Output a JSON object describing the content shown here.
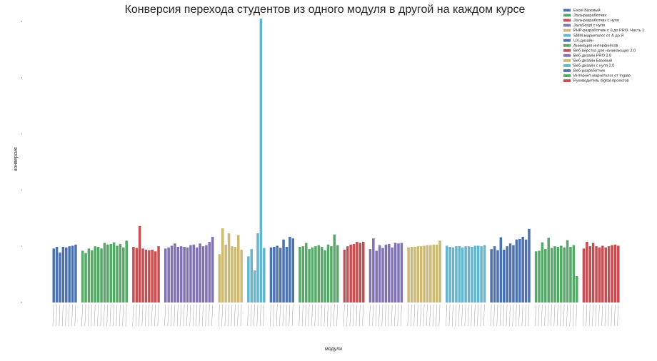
{
  "chart_data": {
    "type": "bar",
    "title": "Конверсия перехода студентов из одного модуля в другой на каждом курсе",
    "xlabel": "модули",
    "ylabel": "конверсия",
    "ylim": [
      0,
      5
    ],
    "yticks": [
      0,
      1,
      2,
      3,
      4,
      5
    ],
    "grid": false,
    "legend_position": "top-right",
    "series": [
      {
        "name": "Excel Базовый",
        "color": "#4c72b0",
        "values": [
          0.96,
          0.99,
          0.89,
          0.99,
          0.98,
          1.0,
          1.01,
          1.03
        ]
      },
      {
        "name": "Java-разработчик",
        "color": "#55a868",
        "values": [
          0.92,
          0.88,
          0.96,
          0.93,
          1.0,
          0.99,
          0.96,
          1.06,
          1.03,
          1.04,
          1.07,
          1.01,
          1.04,
          0.98,
          1.1
        ]
      },
      {
        "name": "Java-разработчик с нуля",
        "color": "#c44e52",
        "values": [
          0.99,
          0.97,
          1.36,
          0.96,
          0.94,
          0.93,
          0.94,
          0.91,
          1.0
        ]
      },
      {
        "name": "JavaScript с нуля",
        "color": "#8172b2",
        "values": [
          0.96,
          0.98,
          1.01,
          1.05,
          0.99,
          1.0,
          0.99,
          0.98,
          1.02,
          1.03,
          0.98,
          1.05,
          1.0,
          1.02,
          1.08,
          1.17
        ]
      },
      {
        "name": "PHP-разработчик с 0 до PRO. Часть 1",
        "color": "#ccb974",
        "values": [
          0.86,
          1.32,
          1.03,
          1.23,
          1.0,
          0.99,
          1.2,
          0.94
        ]
      },
      {
        "name": "SMM-маркетолог от А до Я",
        "color": "#64b5cd",
        "values": [
          0.82,
          0.95,
          0.57,
          1.23,
          5.05,
          0.97
        ]
      },
      {
        "name": "UX-дизайн",
        "color": "#4c72b0",
        "values": [
          0.98,
          0.99,
          1.01,
          0.97,
          1.12,
          0.99,
          1.17,
          1.14
        ]
      },
      {
        "name": "Анимация интерфейсов",
        "color": "#55a868",
        "values": [
          0.99,
          1.0,
          1.06,
          0.95,
          0.98,
          1.0,
          1.02,
          0.99,
          0.93,
          1.03,
          1.0,
          1.21,
          1.02
        ]
      },
      {
        "name": "Веб-вёрстка для начинающих 2.0",
        "color": "#c44e52",
        "values": [
          0.94,
          1.0,
          1.03,
          1.04,
          1.08,
          1.06,
          1.08
        ]
      },
      {
        "name": "Веб-дизайн PRO 2.0",
        "color": "#8172b2",
        "values": [
          0.95,
          1.14,
          0.92,
          1.02,
          0.97,
          1.03,
          1.04,
          0.98,
          1.06,
          1.05,
          1.06
        ]
      },
      {
        "name": "Веб-дизайн Базовый",
        "color": "#ccb974",
        "values": [
          0.98,
          0.99,
          0.99,
          1.0,
          1.0,
          1.01,
          1.02,
          1.02,
          1.03,
          1.03,
          1.1
        ]
      },
      {
        "name": "Веб-дизайн с нуля 2.0",
        "color": "#64b5cd",
        "values": [
          1.01,
          0.99,
          0.98,
          1.0,
          1.0,
          0.98,
          1.0,
          1.0,
          0.99,
          1.01,
          1.01,
          1.0,
          1.02
        ]
      },
      {
        "name": "Веб-разработчик",
        "color": "#4c72b0",
        "values": [
          0.95,
          1.0,
          0.93,
          1.16,
          0.94,
          1.0,
          1.05,
          1.02,
          1.12,
          1.13,
          1.17,
          1.12,
          1.31
        ]
      },
      {
        "name": "Интернет-маркетолог от Ingate",
        "color": "#55a868",
        "values": [
          0.91,
          0.92,
          1.07,
          0.95,
          1.15,
          0.97,
          1.0,
          0.99,
          1.01,
          0.98,
          1.11,
          0.99,
          1.02,
          0.47
        ]
      },
      {
        "name": "Руководитель digital-проектов",
        "color": "#c44e52",
        "values": [
          0.96,
          1.08,
          1.0,
          1.06,
          1.0,
          0.98,
          1.01,
          0.98,
          1.0,
          1.02,
          1.03,
          1.01
        ]
      }
    ]
  }
}
